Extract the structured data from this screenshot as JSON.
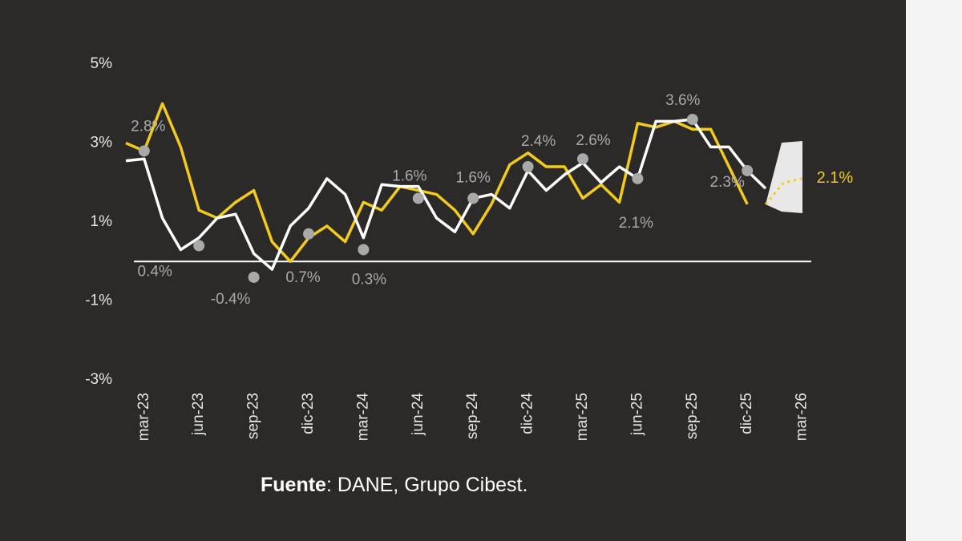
{
  "chart_data": {
    "type": "line",
    "categories": [
      null,
      "mar-23",
      null,
      null,
      "jun-23",
      null,
      null,
      "sep-23",
      null,
      null,
      "dic-23",
      null,
      null,
      "mar-24",
      null,
      null,
      "jun-24",
      null,
      null,
      "sep-24",
      null,
      null,
      "dic-24",
      null,
      null,
      "mar-25",
      null,
      null,
      "jun-25",
      null,
      null,
      "sep-25",
      null,
      null,
      "dic-25",
      null,
      null,
      "mar-26"
    ],
    "series": [
      {
        "color": "#f2cb1d",
        "style": "solid",
        "values": [
          3.0,
          2.8,
          4.0,
          2.9,
          1.3,
          1.1,
          1.5,
          1.8,
          0.5,
          0.0,
          0.6,
          0.9,
          0.5,
          1.5,
          1.3,
          1.9,
          1.8,
          1.7,
          1.3,
          0.7,
          1.45,
          2.45,
          2.75,
          2.4,
          2.4,
          1.6,
          1.95,
          1.5,
          3.5,
          3.4,
          3.55,
          3.35,
          3.35,
          2.4,
          1.45,
          null,
          null,
          null
        ]
      },
      {
        "color": "#ffffff",
        "style": "solid",
        "values": [
          2.55,
          2.6,
          1.1,
          0.3,
          0.6,
          1.1,
          1.2,
          0.2,
          -0.2,
          0.9,
          1.35,
          2.1,
          1.7,
          0.6,
          1.95,
          1.9,
          1.9,
          1.1,
          0.75,
          1.6,
          1.7,
          1.35,
          2.3,
          1.8,
          2.2,
          2.5,
          2.0,
          2.4,
          2.1,
          3.55,
          3.55,
          3.6,
          2.9,
          2.9,
          2.3,
          1.85,
          null,
          null
        ]
      },
      {
        "color": "#f2cb1d",
        "style": "dotted",
        "values": [
          null,
          null,
          null,
          null,
          null,
          null,
          null,
          null,
          null,
          null,
          null,
          null,
          null,
          null,
          null,
          null,
          null,
          null,
          null,
          null,
          null,
          null,
          null,
          null,
          null,
          null,
          null,
          null,
          null,
          null,
          null,
          null,
          null,
          null,
          null,
          1.45,
          2.0,
          2.1
        ],
        "value_labels": [
          null,
          null,
          null,
          null,
          null,
          null,
          null,
          null,
          null,
          null,
          null,
          null,
          null,
          null,
          null,
          null,
          null,
          null,
          null,
          null,
          null,
          null,
          null,
          null,
          null,
          null,
          null,
          null,
          null,
          null,
          null,
          null,
          null,
          null,
          null,
          null,
          null,
          "2.1%"
        ]
      },
      {
        "color": "#a9a9a9",
        "style": "dots",
        "values": [
          null,
          2.8,
          null,
          null,
          0.4,
          null,
          null,
          -0.4,
          null,
          null,
          0.7,
          null,
          null,
          0.3,
          null,
          null,
          1.6,
          null,
          null,
          1.6,
          null,
          null,
          2.4,
          null,
          null,
          2.6,
          null,
          null,
          2.1,
          null,
          null,
          3.6,
          null,
          null,
          2.3,
          null,
          null,
          null
        ],
        "value_labels": [
          null,
          "2.8%",
          null,
          null,
          "0.4%",
          null,
          null,
          "-0.4%",
          null,
          null,
          "0.7%",
          null,
          null,
          "0.3%",
          null,
          null,
          "1.6%",
          null,
          null,
          "1.6%",
          null,
          null,
          "2.4%",
          null,
          null,
          "2.6%",
          null,
          null,
          "2.1%",
          null,
          null,
          "3.6%",
          null,
          null,
          "2.3%",
          null,
          null,
          null
        ]
      }
    ],
    "ylim": [
      -3,
      5
    ],
    "yticks": [
      {
        "value": 5,
        "label": "5%"
      },
      {
        "value": 3,
        "label": "3%"
      },
      {
        "value": 1,
        "label": "1%"
      },
      {
        "value": -1,
        "label": "-1%"
      },
      {
        "value": -3,
        "label": "-3%"
      }
    ],
    "source_label": "Fuente",
    "source_text": ": DANE, Grupo Cibest."
  }
}
